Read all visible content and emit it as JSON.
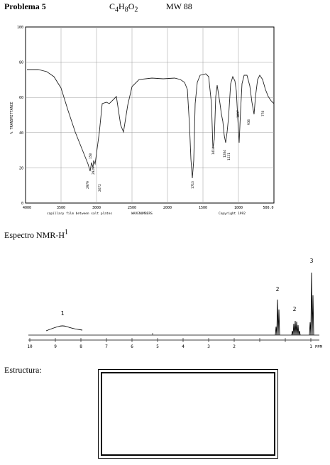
{
  "header": {
    "problem": "Problema 5",
    "formula": "C4H8O2",
    "mw": "MW 88"
  },
  "ir": {
    "y_label": "% TRANSMITTANCE",
    "y_ticks": [
      "100",
      "80",
      "60",
      "40",
      "20",
      "0"
    ],
    "x_ticks": [
      "4000",
      "3500",
      "3000",
      "2500",
      "2000",
      "1500",
      "1000",
      "500.0"
    ],
    "sample_note": "capillary film between salt plates",
    "x_label": "WAVENUMBERS",
    "copyright": "Copyright 1992",
    "peak_labels": [
      "150",
      "2979",
      "2929",
      "2672",
      "1713",
      "1414",
      "1284",
      "1231",
      "1097",
      "936",
      "778"
    ]
  },
  "nmr": {
    "title_main": "Espectro NMR-H",
    "title_sup": "1",
    "x_ticks": [
      "10",
      "9",
      "8",
      "7",
      "6",
      "5",
      "4",
      "3",
      "2",
      "1"
    ],
    "x_unit": "PPM",
    "integrals": [
      "1",
      "2",
      "2",
      "3"
    ]
  },
  "structure": {
    "title": "Estructura:"
  }
}
